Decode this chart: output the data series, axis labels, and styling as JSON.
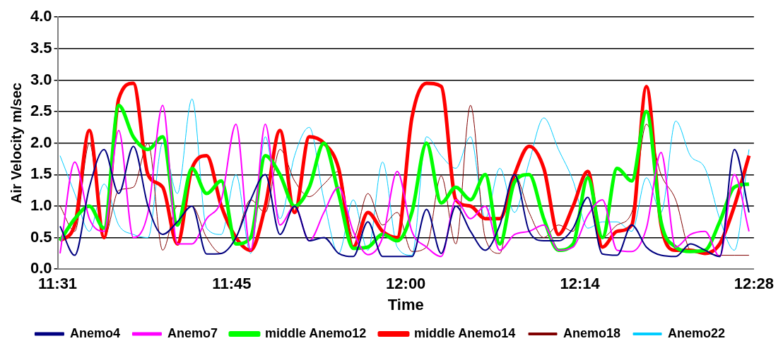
{
  "chart_data": {
    "type": "line",
    "xlabel": "Time",
    "ylabel": "Air Velocity m/sec",
    "x": [
      11.52,
      11.54,
      11.56,
      11.58,
      11.6,
      11.62,
      11.64,
      11.66,
      11.68,
      11.7,
      11.72,
      11.74,
      11.76,
      11.78,
      11.8,
      11.82,
      11.84,
      11.86,
      11.88,
      11.9,
      11.92,
      11.94,
      11.96,
      11.98,
      12.0,
      12.02,
      12.04,
      12.06,
      12.08,
      12.1,
      12.12,
      12.14,
      12.16,
      12.18,
      12.2,
      12.22,
      12.24,
      12.26,
      12.28,
      12.3,
      12.32,
      12.34,
      12.36,
      12.38,
      12.4,
      12.42,
      12.44,
      12.46
    ],
    "series": [
      {
        "name": "Anemo4",
        "color": "#000080",
        "values": [
          0.68,
          0.22,
          1.3,
          1.9,
          1.2,
          1.95,
          1.0,
          0.55,
          0.75,
          1.0,
          0.24,
          0.25,
          0.5,
          1.1,
          1.5,
          0.55,
          1.0,
          0.45,
          0.5,
          0.25,
          0.2,
          0.75,
          0.2,
          0.2,
          0.2,
          0.95,
          0.25,
          1.0,
          0.6,
          0.3,
          0.7,
          1.5,
          0.6,
          0.45,
          0.45,
          0.65,
          1.14,
          0.24,
          0.22,
          0.7,
          0.35,
          0.22,
          0.2,
          0.4,
          0.3,
          0.2,
          1.9,
          0.9
        ]
      },
      {
        "name": "Anemo7",
        "color": "#ff00ff",
        "values": [
          0.25,
          1.7,
          0.8,
          0.6,
          2.2,
          0.5,
          0.9,
          2.6,
          0.4,
          0.4,
          0.8,
          1.1,
          2.3,
          0.3,
          2.3,
          0.7,
          1.0,
          0.45,
          0.9,
          1.3,
          0.6,
          0.23,
          0.5,
          1.55,
          0.6,
          0.35,
          0.2,
          1.1,
          0.8,
          1.0,
          0.3,
          0.55,
          0.6,
          0.7,
          0.3,
          0.35,
          0.85,
          1.1,
          0.3,
          0.28,
          0.65,
          1.85,
          0.35,
          0.55,
          0.6,
          0.2,
          1.5,
          0.6
        ]
      },
      {
        "name": "middle Anemo12",
        "color": "#00ff00",
        "values": [
          0.45,
          0.8,
          1.0,
          0.65,
          2.6,
          2.1,
          1.9,
          2.1,
          0.7,
          1.6,
          1.2,
          1.4,
          0.4,
          0.5,
          1.8,
          1.5,
          1.0,
          1.3,
          2.0,
          1.2,
          0.33,
          0.35,
          0.55,
          0.45,
          0.9,
          2.0,
          1.05,
          1.3,
          1.1,
          1.5,
          0.4,
          1.38,
          1.5,
          0.8,
          0.3,
          0.4,
          1.45,
          0.5,
          1.6,
          1.4,
          2.5,
          0.75,
          0.35,
          0.28,
          0.3,
          0.75,
          1.3,
          1.35
        ]
      },
      {
        "name": "middle Anemo14",
        "color": "#ff0000",
        "values": [
          0.45,
          0.7,
          2.2,
          0.5,
          2.7,
          2.95,
          1.5,
          1.3,
          0.4,
          1.6,
          1.8,
          1.0,
          0.5,
          0.3,
          1.0,
          2.2,
          0.9,
          2.1,
          2.0,
          1.6,
          0.35,
          0.9,
          0.6,
          0.5,
          2.4,
          2.95,
          2.9,
          1.1,
          1.0,
          0.8,
          0.8,
          1.5,
          1.95,
          1.6,
          0.55,
          1.0,
          1.55,
          0.35,
          0.6,
          0.7,
          2.9,
          0.7,
          0.3,
          0.3,
          0.25,
          0.4,
          1.0,
          1.8
        ]
      },
      {
        "name": "Anemo18",
        "color": "#800000",
        "values": [
          1.0,
          0.6,
          2.0,
          0.5,
          1.25,
          1.3,
          2.0,
          0.3,
          1.0,
          1.0,
          0.5,
          0.25,
          0.5,
          1.1,
          0.9,
          1.9,
          1.4,
          1.15,
          1.35,
          1.55,
          0.5,
          1.2,
          0.7,
          0.9,
          0.28,
          0.35,
          1.48,
          0.4,
          2.6,
          0.5,
          0.25,
          1.5,
          0.9,
          0.5,
          0.7,
          0.6,
          1.48,
          0.5,
          0.7,
          0.9,
          2.3,
          1.5,
          1.1,
          0.3,
          0.25,
          0.22,
          0.22,
          0.22
        ]
      },
      {
        "name": "Anemo22",
        "color": "#00ccff",
        "values": [
          1.8,
          1.2,
          0.6,
          1.35,
          0.7,
          0.55,
          0.5,
          2.0,
          1.2,
          2.7,
          0.65,
          0.55,
          1.5,
          0.25,
          2.1,
          0.8,
          1.8,
          2.25,
          1.1,
          0.25,
          1.1,
          0.3,
          1.7,
          0.35,
          0.22,
          2.1,
          1.8,
          1.6,
          2.1,
          0.8,
          1.6,
          0.9,
          1.7,
          2.4,
          1.9,
          1.4,
          0.65,
          0.75,
          0.75,
          0.6,
          1.45,
          0.9,
          2.35,
          1.8,
          1.6,
          0.8,
          0.3,
          1.9
        ]
      }
    ],
    "xlim": [
      11.5167,
      12.4667
    ],
    "xticks": [
      {
        "value": 11.5167,
        "label": "11:31"
      },
      {
        "value": 11.7542,
        "label": "11:45"
      },
      {
        "value": 11.9917,
        "label": "12:00"
      },
      {
        "value": 12.2292,
        "label": "12:14"
      },
      {
        "value": 12.4667,
        "label": "12:28"
      }
    ],
    "ylim": [
      0,
      4
    ],
    "yticks": [
      {
        "value": 0,
        "label": "0.0"
      },
      {
        "value": 0.5,
        "label": "0.5"
      },
      {
        "value": 1,
        "label": "1.0"
      },
      {
        "value": 1.5,
        "label": "1.5"
      },
      {
        "value": 2,
        "label": "2.0"
      },
      {
        "value": 2.5,
        "label": "2.5"
      },
      {
        "value": 3,
        "label": "3.0"
      },
      {
        "value": 3.5,
        "label": "3.5"
      },
      {
        "value": 4,
        "label": "4.0"
      }
    ],
    "grid": "y",
    "legend": "bottom",
    "marker": "none"
  }
}
